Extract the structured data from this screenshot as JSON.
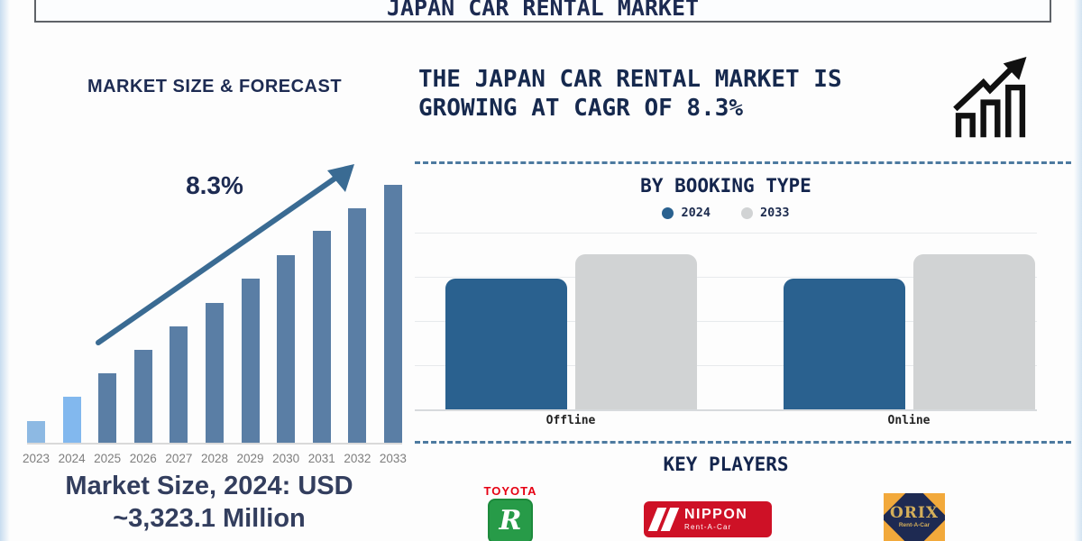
{
  "page": {
    "title": "JAPAN CAR RENTAL MARKET"
  },
  "left": {
    "heading": "MARKET SIZE & FORECAST",
    "cagr_label": "8.3%",
    "footer_line1": "Market Size, 2024: USD",
    "footer_line2": "~3,323.1 Million"
  },
  "right": {
    "headline_line1": "THE JAPAN CAR RENTAL MARKET IS",
    "headline_line2": "GROWING AT CAGR OF 8.3%",
    "growth_icon": "bar-chart-rising-arrow-icon",
    "booking": {
      "heading": "BY BOOKING TYPE"
    },
    "key_players": {
      "heading": "KEY PLAYERS",
      "players": [
        {
          "name": "TOYOTA Rent a Car",
          "wordmark": "TOYOTA",
          "monogram": "R"
        },
        {
          "name": "NIPPON Rent-A-Car",
          "wordmark": "NIPPON",
          "sub": "Rent-A-Car"
        },
        {
          "name": "ORIX Rent-A-Car",
          "wordmark": "ORIX",
          "sub": "Rent-A-Car"
        }
      ]
    }
  },
  "colors": {
    "heading_navy": "#1d2b52",
    "forecast_bar_light_blue": "#8db9e3",
    "forecast_bar_steel_blue": "#5a7ea5",
    "trend_arrow_blue": "#3a6b93",
    "booking_2024_blue": "#2a618f",
    "booking_2033_gray": "#d1d3d4",
    "dashed_divider_blue": "#4d7aa0",
    "toyota_green": "#279b48",
    "toyota_red": "#e60013",
    "nippon_red": "#ce1126",
    "orix_orange": "#f2a93b",
    "orix_navy": "#1e2a52",
    "orix_gold": "#d4af5a"
  },
  "chart_data": [
    {
      "type": "bar",
      "title": "MARKET SIZE & FORECAST",
      "categories": [
        "2023",
        "2024",
        "2025",
        "2026",
        "2027",
        "2028",
        "2029",
        "2030",
        "2031",
        "2032",
        "2033"
      ],
      "values_relative_pct": [
        8.4,
        17.8,
        26.9,
        36.0,
        45.1,
        54.2,
        63.6,
        72.7,
        82.2,
        90.9,
        100
      ],
      "value_axis": "unlabeled; bar heights relative to 2033 = 100",
      "bar_colors": [
        "#8db9e3",
        "#82b8ee",
        "#5a7ea5",
        "#5a7ea5",
        "#5a7ea5",
        "#5a7ea5",
        "#5a7ea5",
        "#5a7ea5",
        "#5a7ea5",
        "#5a7ea5",
        "#5a7ea5"
      ],
      "annotations": [
        {
          "text": "8.3%",
          "meaning": "CAGR trend label"
        },
        {
          "type": "trend-arrow",
          "direction": "up-right"
        }
      ],
      "known_point": {
        "year": "2024",
        "value": "USD ~3,323.1 Million"
      },
      "grid": "off",
      "legend_position": "none"
    },
    {
      "type": "bar",
      "title": "BY BOOKING TYPE",
      "categories": [
        "Offline",
        "Online"
      ],
      "series": [
        {
          "name": "2024",
          "color": "#2a618f",
          "values_relative_pct": [
            74,
            74
          ]
        },
        {
          "name": "2033",
          "color": "#d1d3d4",
          "values_relative_pct": [
            88,
            88
          ]
        }
      ],
      "value_axis": "unlabeled; relative heights",
      "grid": "horizontal",
      "legend_position": "top"
    }
  ]
}
